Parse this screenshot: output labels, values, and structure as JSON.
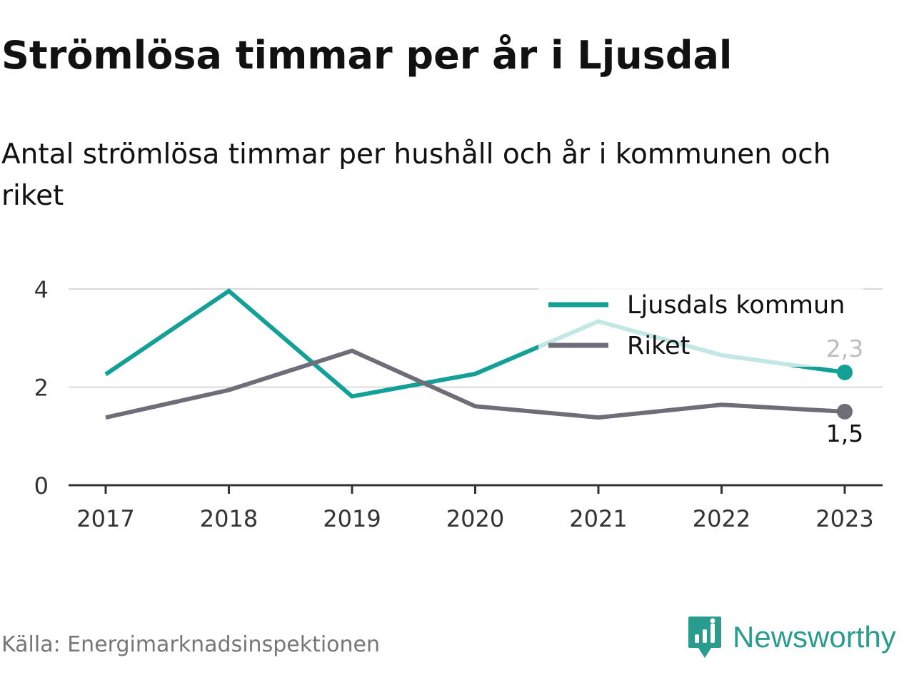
{
  "title": "Strömlösa timmar per år i Ljusdal",
  "subtitle": "Antal strömlösa timmar per hushåll och år i kommunen och riket",
  "source": "Källa: Energimarknadsinspektionen",
  "brand": {
    "name": "Newsworthy",
    "icon": "newsworthy-logo-icon",
    "color": "#2a9c8d"
  },
  "chart_data": {
    "type": "line",
    "x": [
      "2017",
      "2018",
      "2019",
      "2020",
      "2021",
      "2022",
      "2023"
    ],
    "y_ticks": [
      "0",
      "2",
      "4"
    ],
    "ylim": [
      0,
      4
    ],
    "grid": true,
    "legend_position": "top-right",
    "series": [
      {
        "name": "Ljusdals kommun",
        "color": "#12a097",
        "values": [
          2.26,
          3.96,
          1.81,
          2.27,
          3.34,
          2.65,
          2.3
        ],
        "end_label": "2,3"
      },
      {
        "name": "Riket",
        "color": "#6f6e78",
        "values": [
          1.38,
          1.94,
          2.74,
          1.61,
          1.38,
          1.64,
          1.5
        ],
        "end_label": "1,5"
      }
    ]
  }
}
